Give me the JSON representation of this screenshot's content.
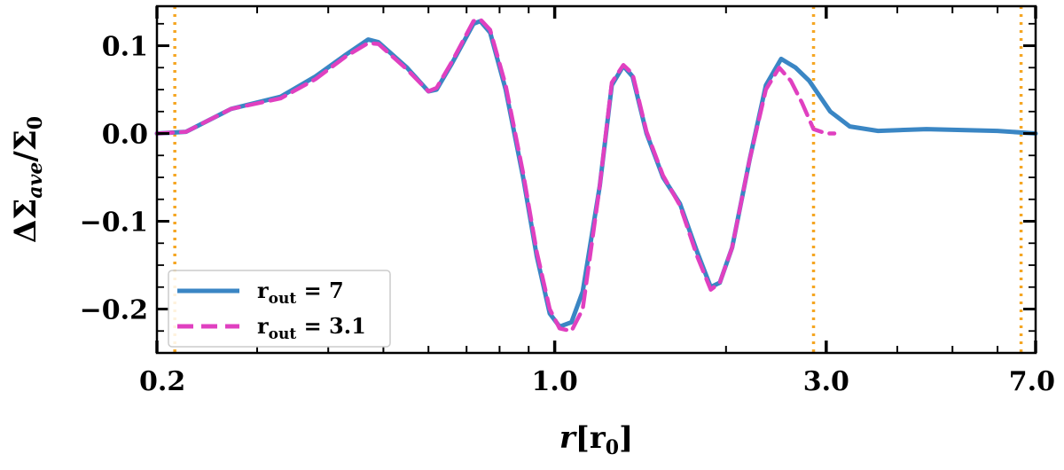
{
  "chart_data": {
    "type": "line",
    "xlabel": {
      "main": "r",
      "bracket_open": "[",
      "unit": "r",
      "unit_sub": "0",
      "bracket_close": "]"
    },
    "ylabel": {
      "main": "ΔΣ",
      "sub": "ave",
      "slash": "/Σ",
      "sub2": "0"
    },
    "xscale": "log",
    "xlim": [
      0.2,
      7.0
    ],
    "ylim": [
      -0.25,
      0.145
    ],
    "x_tick_labels": [
      "0.2",
      "1.0",
      "3.0",
      "7.0"
    ],
    "x_ticks": [
      0.2,
      1.0,
      3.0,
      7.0
    ],
    "y_ticks": [
      -0.2,
      -0.1,
      0.0,
      0.1
    ],
    "y_tick_labels": [
      "−0.2",
      "−0.1",
      "0.0",
      "0.1"
    ],
    "vlines": [
      {
        "x": 0.215,
        "color": "#f5a623",
        "style": "dotted"
      },
      {
        "x": 2.85,
        "color": "#f5a623",
        "style": "dotted"
      },
      {
        "x": 6.6,
        "color": "#f5a623",
        "style": "dotted"
      }
    ],
    "legend_position": "lower-left",
    "series": [
      {
        "name": "r",
        "name_sub": "out",
        "name_value": " = 7",
        "color": "#3a86c4",
        "style": "solid",
        "points": [
          [
            0.2,
            0.0
          ],
          [
            0.225,
            0.002
          ],
          [
            0.27,
            0.028
          ],
          [
            0.33,
            0.042
          ],
          [
            0.38,
            0.065
          ],
          [
            0.43,
            0.09
          ],
          [
            0.47,
            0.107
          ],
          [
            0.49,
            0.104
          ],
          [
            0.55,
            0.075
          ],
          [
            0.6,
            0.048
          ],
          [
            0.62,
            0.05
          ],
          [
            0.66,
            0.08
          ],
          [
            0.72,
            0.125
          ],
          [
            0.74,
            0.128
          ],
          [
            0.77,
            0.115
          ],
          [
            0.82,
            0.05
          ],
          [
            0.88,
            -0.05
          ],
          [
            0.93,
            -0.14
          ],
          [
            0.98,
            -0.205
          ],
          [
            1.02,
            -0.22
          ],
          [
            1.07,
            -0.215
          ],
          [
            1.12,
            -0.18
          ],
          [
            1.2,
            -0.06
          ],
          [
            1.26,
            0.055
          ],
          [
            1.32,
            0.077
          ],
          [
            1.37,
            0.065
          ],
          [
            1.45,
            0.0
          ],
          [
            1.55,
            -0.05
          ],
          [
            1.66,
            -0.08
          ],
          [
            1.78,
            -0.135
          ],
          [
            1.88,
            -0.175
          ],
          [
            1.95,
            -0.17
          ],
          [
            2.05,
            -0.13
          ],
          [
            2.2,
            -0.03
          ],
          [
            2.35,
            0.055
          ],
          [
            2.5,
            0.085
          ],
          [
            2.65,
            0.075
          ],
          [
            2.8,
            0.06
          ],
          [
            3.05,
            0.025
          ],
          [
            3.3,
            0.008
          ],
          [
            3.7,
            0.003
          ],
          [
            4.5,
            0.005
          ],
          [
            6.0,
            0.003
          ],
          [
            7.0,
            0.0
          ]
        ]
      },
      {
        "name": "r",
        "name_sub": "out",
        "name_value": " = 3.1",
        "color": "#e040c0",
        "style": "dashed",
        "points": [
          [
            0.2,
            0.0
          ],
          [
            0.225,
            0.002
          ],
          [
            0.27,
            0.028
          ],
          [
            0.33,
            0.04
          ],
          [
            0.38,
            0.062
          ],
          [
            0.43,
            0.088
          ],
          [
            0.47,
            0.103
          ],
          [
            0.49,
            0.102
          ],
          [
            0.55,
            0.073
          ],
          [
            0.6,
            0.048
          ],
          [
            0.62,
            0.052
          ],
          [
            0.66,
            0.082
          ],
          [
            0.72,
            0.128
          ],
          [
            0.74,
            0.13
          ],
          [
            0.77,
            0.118
          ],
          [
            0.82,
            0.055
          ],
          [
            0.88,
            -0.045
          ],
          [
            0.93,
            -0.135
          ],
          [
            0.98,
            -0.2
          ],
          [
            1.02,
            -0.222
          ],
          [
            1.07,
            -0.225
          ],
          [
            1.12,
            -0.2
          ],
          [
            1.2,
            -0.06
          ],
          [
            1.26,
            0.058
          ],
          [
            1.32,
            0.078
          ],
          [
            1.37,
            0.068
          ],
          [
            1.45,
            0.002
          ],
          [
            1.55,
            -0.048
          ],
          [
            1.66,
            -0.082
          ],
          [
            1.78,
            -0.14
          ],
          [
            1.88,
            -0.178
          ],
          [
            1.95,
            -0.17
          ],
          [
            2.05,
            -0.13
          ],
          [
            2.2,
            -0.03
          ],
          [
            2.35,
            0.05
          ],
          [
            2.48,
            0.075
          ],
          [
            2.6,
            0.06
          ],
          [
            2.72,
            0.035
          ],
          [
            2.85,
            0.005
          ],
          [
            3.0,
            0.0
          ],
          [
            3.1,
            0.0
          ]
        ]
      }
    ]
  }
}
